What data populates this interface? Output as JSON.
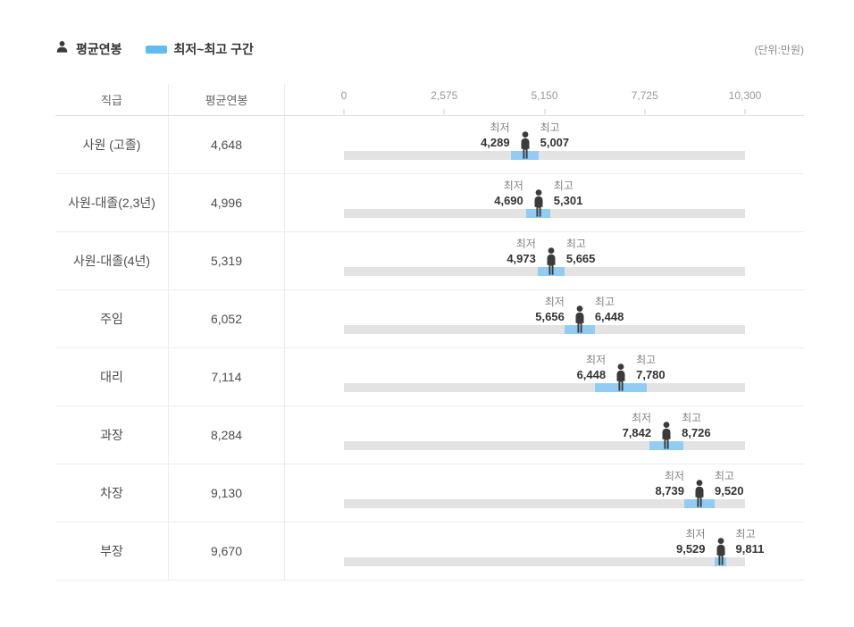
{
  "page": {
    "unit_label": "(단위:만원)"
  },
  "legend": {
    "avg_label": "평균연봉",
    "range_label": "최저~최고 구간"
  },
  "table": {
    "col_grade": "직급",
    "col_avg": "평균연봉",
    "min_label": "최저",
    "max_label": "최고",
    "rows": [
      {
        "grade": "사원 (고졸)",
        "avg": "4,648",
        "min": "4,289",
        "max": "5,007",
        "avg_n": 4648,
        "min_n": 4289,
        "max_n": 5007
      },
      {
        "grade": "사원-대졸(2,3년)",
        "avg": "4,996",
        "min": "4,690",
        "max": "5,301",
        "avg_n": 4996,
        "min_n": 4690,
        "max_n": 5301
      },
      {
        "grade": "사원-대졸(4년)",
        "avg": "5,319",
        "min": "4,973",
        "max": "5,665",
        "avg_n": 5319,
        "min_n": 4973,
        "max_n": 5665
      },
      {
        "grade": "주임",
        "avg": "6,052",
        "min": "5,656",
        "max": "6,448",
        "avg_n": 6052,
        "min_n": 5656,
        "max_n": 6448
      },
      {
        "grade": "대리",
        "avg": "7,114",
        "min": "6,448",
        "max": "7,780",
        "avg_n": 7114,
        "min_n": 6448,
        "max_n": 7780
      },
      {
        "grade": "과장",
        "avg": "8,284",
        "min": "7,842",
        "max": "8,726",
        "avg_n": 8284,
        "min_n": 7842,
        "max_n": 8726
      },
      {
        "grade": "차장",
        "avg": "9,130",
        "min": "8,739",
        "max": "9,520",
        "avg_n": 9130,
        "min_n": 8739,
        "max_n": 9520
      },
      {
        "grade": "부장",
        "avg": "9,670",
        "min": "9,529",
        "max": "9,811",
        "avg_n": 9670,
        "min_n": 9529,
        "max_n": 9811
      }
    ]
  },
  "axis": {
    "max": 10300,
    "ticks": [
      {
        "label": "0",
        "value": 0
      },
      {
        "label": "2,575",
        "value": 2575
      },
      {
        "label": "5,150",
        "value": 5150
      },
      {
        "label": "7,725",
        "value": 7725
      },
      {
        "label": "10,300",
        "value": 10300
      }
    ]
  },
  "colors": {
    "legend_swatch": "#5fbbf0",
    "range_bar": "#92ccf3",
    "track": "#e3e3e3",
    "person": "#3b3b3b"
  },
  "chart_data": {
    "type": "bar",
    "orientation": "horizontal",
    "categories": [
      "사원 (고졸)",
      "사원-대졸(2,3년)",
      "사원-대졸(4년)",
      "주임",
      "대리",
      "과장",
      "차장",
      "부장"
    ],
    "series": [
      {
        "name": "평균연봉",
        "values": [
          4648,
          4996,
          5319,
          6052,
          7114,
          8284,
          9130,
          9670
        ]
      },
      {
        "name": "최저",
        "values": [
          4289,
          4690,
          4973,
          5656,
          6448,
          7842,
          8739,
          9529
        ]
      },
      {
        "name": "최고",
        "values": [
          5007,
          5301,
          5665,
          6448,
          7780,
          8726,
          9520,
          9811
        ]
      }
    ],
    "title": "",
    "xlabel": "",
    "ylabel": "직급",
    "xlim": [
      0,
      10300
    ],
    "x_ticks": [
      0,
      2575,
      5150,
      7725,
      10300
    ],
    "unit": "만원",
    "legend_position": "top-left",
    "grid": false
  }
}
